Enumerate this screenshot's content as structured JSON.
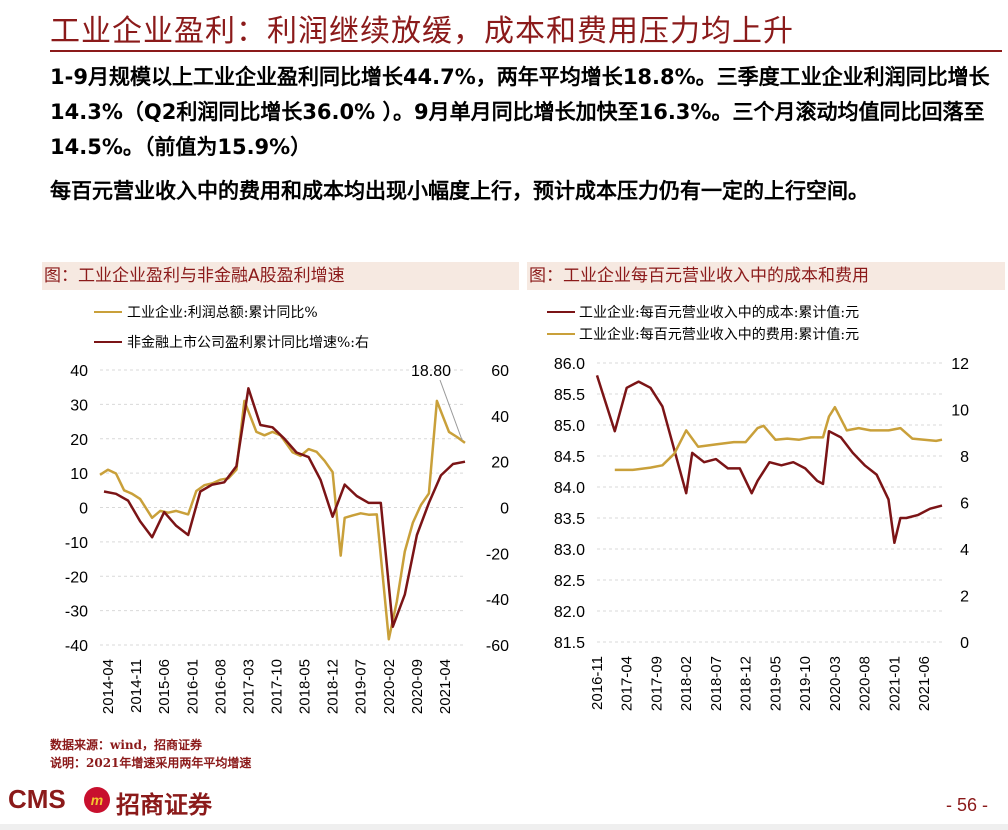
{
  "header": {
    "title": "工业企业盈利：利润继续放缓，成本和费用压力均上升"
  },
  "summary": {
    "p1": "1-9月规模以上工业企业盈利同比增长44.7%，两年平均增长18.8%。三季度工业企业利润同比增长14.3%（Q2利润同比增长36.0% ）。9月单月同比增长加快至16.3%。三个月滚动均值同比回落至14.5%。（前值为15.9%）",
    "p2": "每百元营业收入中的费用和成本均出现小幅度上行，预计成本压力仍有一定的上行空间。"
  },
  "colors": {
    "gold": "#C9A03A",
    "maroon": "#7B1416",
    "brand": "#8B1A1A"
  },
  "chart_left": {
    "caption": "图：工业企业盈利与非金融A股盈利增速",
    "legend": [
      "工业企业:利润总额:累计同比%",
      "非金融上市公司盈利累计同比增速%:右"
    ],
    "left_ticks": [
      "40",
      "30",
      "20",
      "10",
      "0",
      "-10",
      "-20",
      "-30",
      "-40"
    ],
    "right_ticks": [
      "60",
      "40",
      "20",
      "0",
      "-20",
      "-40",
      "-60"
    ],
    "x_ticks": [
      "2014-04",
      "2014-11",
      "2015-06",
      "2016-01",
      "2016-08",
      "2017-03",
      "2017-10",
      "2018-05",
      "2018-12",
      "2019-07",
      "2020-02",
      "2020-09",
      "2021-04"
    ],
    "annotation": "18.80"
  },
  "chart_right": {
    "caption": "图：工业企业每百元营业收入中的成本和费用",
    "legend": [
      "工业企业:每百元营业收入中的成本:累计值:元",
      "工业企业:每百元营业收入中的费用:累计值:元"
    ],
    "left_ticks": [
      "86.0",
      "85.5",
      "85.0",
      "84.5",
      "84.0",
      "83.5",
      "83.0",
      "82.5",
      "82.0",
      "81.5"
    ],
    "right_ticks": [
      "12",
      "10",
      "8",
      "6",
      "4",
      "2",
      "0"
    ],
    "x_ticks": [
      "2016-11",
      "2017-04",
      "2017-09",
      "2018-02",
      "2018-07",
      "2018-12",
      "2019-05",
      "2019-10",
      "2020-03",
      "2020-08",
      "2021-01",
      "2021-06"
    ]
  },
  "chart_data": [
    {
      "type": "line",
      "title": "图：工业企业盈利与非金融A股盈利增速",
      "x_range": [
        "2014-02",
        "2021-09"
      ],
      "ylim_left": [
        -40,
        40
      ],
      "ylim_right": [
        -60,
        60
      ],
      "series": [
        {
          "name": "工业企业:利润总额:累计同比%",
          "axis": "left",
          "color": "#C9A03A",
          "x": [
            "2014-02",
            "2014-04",
            "2014-06",
            "2014-08",
            "2014-10",
            "2014-12",
            "2015-03",
            "2015-05",
            "2015-07",
            "2015-09",
            "2015-12",
            "2016-02",
            "2016-04",
            "2016-06",
            "2016-08",
            "2016-10",
            "2016-12",
            "2017-02",
            "2017-03",
            "2017-05",
            "2017-07",
            "2017-09",
            "2017-11",
            "2018-02",
            "2018-04",
            "2018-06",
            "2018-08",
            "2018-10",
            "2018-12",
            "2019-02",
            "2019-03",
            "2019-05",
            "2019-07",
            "2019-09",
            "2019-11",
            "2020-02",
            "2020-04",
            "2020-06",
            "2020-08",
            "2020-10",
            "2020-12",
            "2021-02",
            "2021-03",
            "2021-05",
            "2021-07",
            "2021-09"
          ],
          "values": [
            9.5,
            11,
            9.9,
            5,
            4,
            2.5,
            -3,
            -1,
            -1.5,
            -1,
            -2,
            4.8,
            6.5,
            7,
            8.1,
            8.5,
            11,
            31,
            28,
            22,
            21,
            22,
            21,
            16.1,
            15,
            17,
            16.2,
            13.6,
            10.3,
            -14,
            -3,
            -2.3,
            -1.7,
            -2.1,
            -2,
            -38.3,
            -27.4,
            -12.8,
            -4.4,
            0.7,
            4.1,
            31,
            28,
            22,
            20.5,
            18.8
          ]
        },
        {
          "name": "非金融上市公司盈利累计同比增速%:右",
          "axis": "right",
          "color": "#7B1416",
          "x": [
            "2014-03",
            "2014-06",
            "2014-09",
            "2014-12",
            "2015-03",
            "2015-06",
            "2015-09",
            "2015-12",
            "2016-03",
            "2016-06",
            "2016-09",
            "2016-12",
            "2017-03",
            "2017-06",
            "2017-09",
            "2017-12",
            "2018-03",
            "2018-06",
            "2018-09",
            "2018-12",
            "2019-03",
            "2019-06",
            "2019-09",
            "2019-12",
            "2020-03",
            "2020-06",
            "2020-09",
            "2020-12",
            "2021-03",
            "2021-06",
            "2021-09"
          ],
          "values": [
            7,
            6,
            3,
            -6,
            -13,
            -2,
            -8,
            -12,
            7,
            10,
            11,
            18,
            52,
            36,
            35,
            30,
            24,
            22,
            12,
            -4,
            10,
            5,
            2,
            2,
            -52,
            -38,
            -12,
            2,
            14,
            19,
            20
          ]
        }
      ]
    },
    {
      "type": "line",
      "title": "图：工业企业每百元营业收入中的成本和费用",
      "x_range": [
        "2016-11",
        "2021-09"
      ],
      "ylim_left": [
        81.5,
        86.0
      ],
      "ylim_right": [
        0,
        12
      ],
      "series": [
        {
          "name": "工业企业:每百元营业收入中的成本:累计值:元",
          "axis": "left",
          "color": "#7B1416",
          "x": [
            "2016-11",
            "2016-12",
            "2017-02",
            "2017-04",
            "2017-06",
            "2017-08",
            "2017-10",
            "2017-12",
            "2018-02",
            "2018-03",
            "2018-05",
            "2018-07",
            "2018-09",
            "2018-11",
            "2019-01",
            "2019-02",
            "2019-04",
            "2019-06",
            "2019-08",
            "2019-10",
            "2019-12",
            "2020-01",
            "2020-02",
            "2020-04",
            "2020-06",
            "2020-08",
            "2020-10",
            "2020-12",
            "2021-01",
            "2021-02",
            "2021-03",
            "2021-05",
            "2021-07",
            "2021-09"
          ],
          "values": [
            85.8,
            85.5,
            84.9,
            85.6,
            85.7,
            85.6,
            85.3,
            84.6,
            83.9,
            84.55,
            84.4,
            84.45,
            84.3,
            84.3,
            83.9,
            84.1,
            84.4,
            84.35,
            84.4,
            84.3,
            84.1,
            84.05,
            84.9,
            84.8,
            84.55,
            84.35,
            84.2,
            83.8,
            83.1,
            83.5,
            83.5,
            83.55,
            83.65,
            83.7
          ]
        },
        {
          "name": "工业企业:每百元营业收入中的费用:累计值:元",
          "axis": "right",
          "color": "#C9A03A",
          "x": [
            "2017-02",
            "2017-05",
            "2017-08",
            "2017-10",
            "2017-12",
            "2018-02",
            "2018-04",
            "2018-07",
            "2018-10",
            "2018-12",
            "2019-02",
            "2019-03",
            "2019-05",
            "2019-07",
            "2019-09",
            "2019-11",
            "2020-01",
            "2020-02",
            "2020-03",
            "2020-05",
            "2020-07",
            "2020-09",
            "2020-11",
            "2020-12",
            "2021-02",
            "2021-04",
            "2021-06",
            "2021-08",
            "2021-09"
          ],
          "values": [
            7.4,
            7.4,
            7.5,
            7.6,
            8.1,
            9.1,
            8.4,
            8.5,
            8.6,
            8.6,
            9.2,
            9.3,
            8.7,
            8.75,
            8.7,
            8.8,
            8.8,
            9.7,
            10.1,
            9.1,
            9.2,
            9.1,
            9.1,
            9.1,
            9.2,
            8.75,
            8.7,
            8.65,
            8.7
          ]
        }
      ]
    }
  ],
  "footer": {
    "source": "数据来源：wind，招商证券",
    "note": "说明：2021年增速采用两年平均增速",
    "logo_en": "CMS",
    "logo_mark": "m",
    "logo_cn": "招商证券",
    "page": "- 56 -"
  }
}
